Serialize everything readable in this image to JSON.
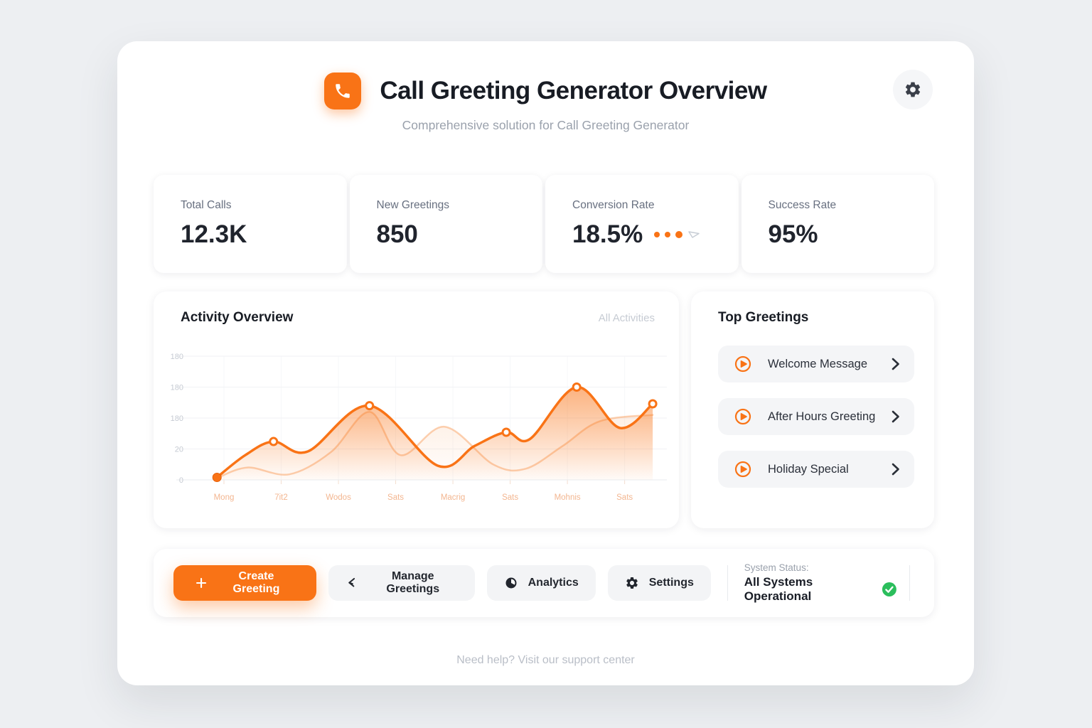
{
  "app": {
    "title": "Call Greeting Generator Overview",
    "subtitle": "Comprehensive solution for Call Greeting Generator",
    "footer_link": "Need help? Visit our support center",
    "colors": {
      "accent_orange": "#F97316",
      "status_green": "#2BBE5C",
      "page_background": "#EDEFF2",
      "muted_text": "#9AA1AC"
    }
  },
  "stats": [
    {
      "label": "Total Calls",
      "value": "12.3K"
    },
    {
      "label": "New Greetings",
      "value": "850"
    },
    {
      "label": "Conversion Rate",
      "value": "18.5%",
      "indicator_dots": 3,
      "indicator_icon": "cursor-icon"
    },
    {
      "label": "Success Rate",
      "value": "95%"
    }
  ],
  "chart_data": {
    "type": "area",
    "title": "Activity Overview",
    "filter_label": "All Activities",
    "x_tick_labels": [
      "Mong",
      "7it2",
      "Wodos",
      "Sats",
      "Macrig",
      "Sats",
      "Mohnis",
      "Sats"
    ],
    "y_tick_labels_top_to_bottom": [
      "180",
      "180",
      "180",
      "20",
      "0"
    ],
    "ylim": [
      0,
      200
    ],
    "grid": true,
    "legend": false,
    "series": [
      {
        "name": "secondary-activity",
        "color": "#F99A55",
        "line_width": 2.5,
        "opacity": 0.45,
        "points": [
          {
            "x": 0.054,
            "y": 3
          },
          {
            "x": 0.12,
            "y": 20
          },
          {
            "x": 0.21,
            "y": 9
          },
          {
            "x": 0.3,
            "y": 45
          },
          {
            "x": 0.383,
            "y": 110
          },
          {
            "x": 0.45,
            "y": 40
          },
          {
            "x": 0.545,
            "y": 86
          },
          {
            "x": 0.65,
            "y": 25
          },
          {
            "x": 0.72,
            "y": 18
          },
          {
            "x": 0.8,
            "y": 55
          },
          {
            "x": 0.88,
            "y": 95
          },
          {
            "x": 0.994,
            "y": 105
          }
        ]
      },
      {
        "name": "primary-activity",
        "color": "#F97316",
        "line_width": 3.5,
        "opacity": 1,
        "points": [
          {
            "x": 0.054,
            "y": 4,
            "marker": true,
            "solid": true
          },
          {
            "x": 0.115,
            "y": 40
          },
          {
            "x": 0.176,
            "y": 62,
            "marker": true
          },
          {
            "x": 0.25,
            "y": 46
          },
          {
            "x": 0.383,
            "y": 120,
            "marker": true
          },
          {
            "x": 0.53,
            "y": 23
          },
          {
            "x": 0.61,
            "y": 55
          },
          {
            "x": 0.678,
            "y": 77,
            "marker": true
          },
          {
            "x": 0.729,
            "y": 66
          },
          {
            "x": 0.83,
            "y": 150,
            "marker": true
          },
          {
            "x": 0.923,
            "y": 84
          },
          {
            "x": 0.994,
            "y": 123,
            "marker": true
          }
        ]
      }
    ]
  },
  "top_greetings": {
    "title": "Top Greetings",
    "items": [
      {
        "label": "Welcome Message",
        "icon": "play-icon"
      },
      {
        "label": "After Hours Greeting",
        "icon": "play-icon"
      },
      {
        "label": "Holiday Special",
        "icon": "play-icon"
      }
    ]
  },
  "toolbar": {
    "create_label": "Create Greeting",
    "manage_label": "Manage Greetings",
    "analytics_label": "Analytics",
    "settings_label": "Settings",
    "status_label": "System Status:",
    "status_value": "All Systems Operational"
  }
}
